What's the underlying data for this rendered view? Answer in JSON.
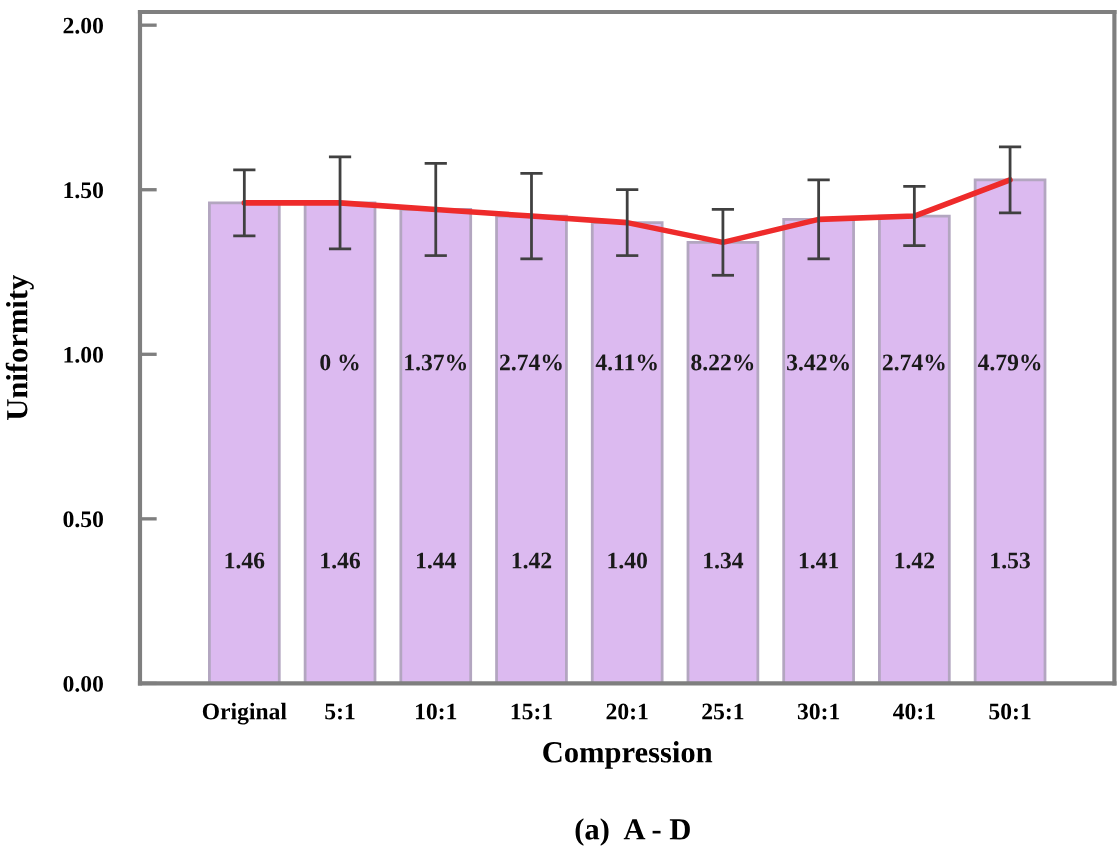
{
  "chart_data": {
    "type": "bar",
    "title": "(a)  A - D",
    "xlabel": "Compression",
    "ylabel": "Uniformity",
    "categories": [
      "Original",
      "5:1",
      "10:1",
      "15:1",
      "20:1",
      "25:1",
      "30:1",
      "40:1",
      "50:1"
    ],
    "series": [
      {
        "color": "#dcbaf0",
        "values": [
          1.46,
          1.46,
          1.44,
          1.42,
          1.4,
          1.34,
          1.41,
          1.42,
          1.53
        ],
        "errors": [
          0.1,
          0.14,
          0.14,
          0.13,
          0.1,
          0.1,
          0.12,
          0.09,
          0.1
        ],
        "value_labels": [
          "1.46",
          "1.46",
          "1.44",
          "1.42",
          "1.40",
          "1.34",
          "1.41",
          "1.42",
          "1.53"
        ]
      },
      {
        "type": "line",
        "color": "#ee2b2b",
        "values": [
          1.46,
          1.46,
          1.44,
          1.42,
          1.4,
          1.34,
          1.41,
          1.42,
          1.53
        ]
      }
    ],
    "ylim": [
      0,
      2.04
    ],
    "yticks": [
      {
        "value": 0,
        "label": "0.00"
      },
      {
        "value": 0.5,
        "label": "0.50"
      },
      {
        "value": 1,
        "label": "1.00"
      },
      {
        "value": 1.5,
        "label": "1.50"
      },
      {
        "value": 2,
        "label": "2.00"
      }
    ],
    "annotations": [
      "0 %",
      "1.37%",
      "2.74%",
      "4.11%",
      "8.22%",
      "3.42%",
      "2.74%",
      "4.79%"
    ]
  }
}
